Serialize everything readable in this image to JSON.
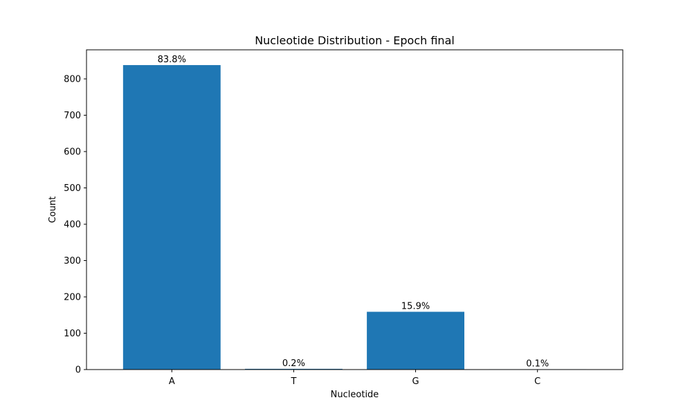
{
  "chart_data": {
    "type": "bar",
    "title": "Nucleotide Distribution - Epoch final",
    "xlabel": "Nucleotide",
    "ylabel": "Count",
    "categories": [
      "A",
      "T",
      "G",
      "C"
    ],
    "values": [
      838,
      2,
      159,
      1
    ],
    "bar_labels": [
      "83.8%",
      "0.2%",
      "15.9%",
      "0.1%"
    ],
    "ylim": [
      0,
      880
    ],
    "yticks": [
      0,
      100,
      200,
      300,
      400,
      500,
      600,
      700,
      800
    ],
    "grid": false,
    "bar_color": "#1f77b4"
  }
}
